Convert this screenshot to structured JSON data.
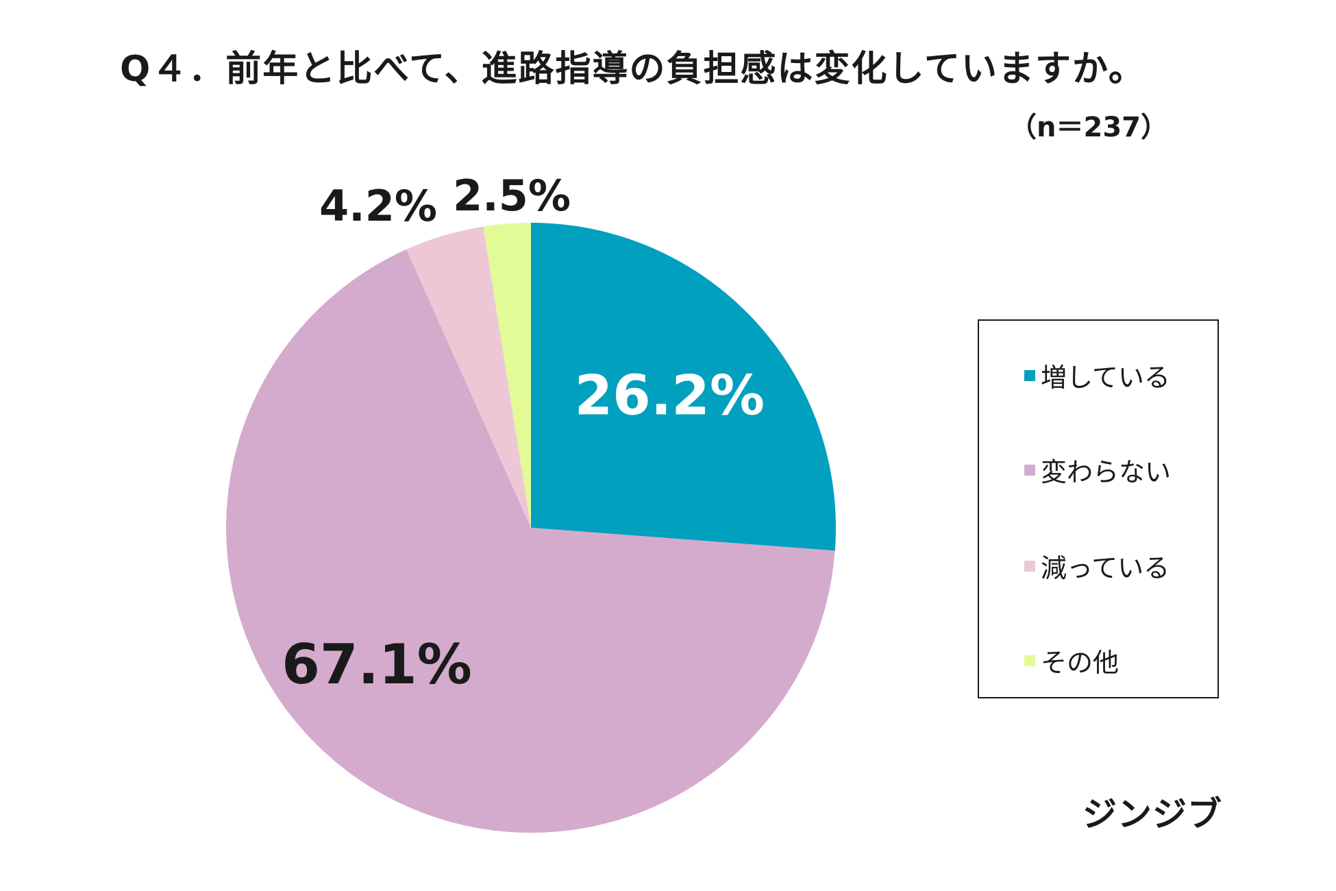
{
  "title": "Q４．前年と比べて、進路指導の負担感は変化していますか。",
  "sample_note": "（n＝237）",
  "brand": "ジンジブ",
  "chart_data": {
    "type": "pie",
    "title": "Q４．前年と比べて、進路指導の負担感は変化していますか。",
    "categories": [
      "増している",
      "変わらない",
      "減っている",
      "その他"
    ],
    "values": [
      26.2,
      67.1,
      4.2,
      2.5
    ],
    "value_labels": [
      "26.2%",
      "67.1%",
      "4.2%",
      "2.5%"
    ],
    "colors": [
      "#00A0BE",
      "#D4ABCD",
      "#EDC8D4",
      "#E2FB96"
    ],
    "start_angle": "12 o'clock",
    "direction": "clockwise",
    "legend": "right"
  },
  "legend": {
    "items": [
      {
        "label": "増している",
        "color": "#00A0BE"
      },
      {
        "label": "変わらない",
        "color": "#D4ABCD"
      },
      {
        "label": "減っている",
        "color": "#EDC8D4"
      },
      {
        "label": "その他",
        "color": "#E2FB96"
      }
    ]
  }
}
